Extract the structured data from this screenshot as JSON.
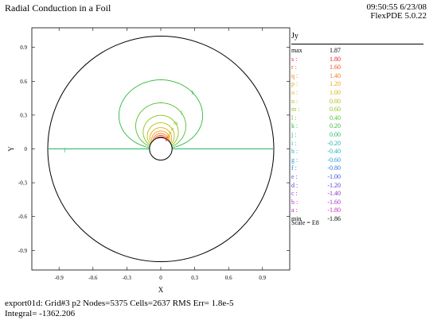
{
  "header": {
    "title": "Radial Conduction in a Foil",
    "timestamp": "09:50:55 6/23/08",
    "version": "FlexPDE 5.0.22"
  },
  "chart_data": {
    "type": "contour",
    "xlabel": "X",
    "ylabel": "Y",
    "xlim": [
      -1.1,
      1.1
    ],
    "ylim": [
      -1.1,
      1.1
    ],
    "xticks": [
      "-0.9",
      "-0.6",
      "-0.3",
      "0",
      "0.3",
      "0.6",
      "0.9"
    ],
    "yticks": [
      "0.9",
      "0.6",
      "0.3",
      "0",
      "-0.3",
      "-0.6",
      "-0.9"
    ],
    "outer_radius": 1.0,
    "inner_radius": 0.1,
    "variable": "Jy",
    "scale": "Scale = E8",
    "legend": [
      {
        "key": "max",
        "value": "1.87",
        "color": "#000000"
      },
      {
        "key": "s :",
        "value": "1.80",
        "color": "#e8192c"
      },
      {
        "key": "r :",
        "value": "1.60",
        "color": "#ee4a1c"
      },
      {
        "key": "q :",
        "value": "1.40",
        "color": "#f07a18"
      },
      {
        "key": "p :",
        "value": "1.20",
        "color": "#ee9e14"
      },
      {
        "key": "o :",
        "value": "1.00",
        "color": "#d8b010"
      },
      {
        "key": "n :",
        "value": "0.80",
        "color": "#b4bf12"
      },
      {
        "key": "m :",
        "value": "0.60",
        "color": "#86c41e"
      },
      {
        "key": "l :",
        "value": "0.40",
        "color": "#56c02c"
      },
      {
        "key": "k :",
        "value": "0.20",
        "color": "#2eb83a"
      },
      {
        "key": "j :",
        "value": "0.00",
        "color": "#1fb66a"
      },
      {
        "key": "i :",
        "value": "-0.20",
        "color": "#18b49c"
      },
      {
        "key": "h :",
        "value": "-0.40",
        "color": "#16b0c4"
      },
      {
        "key": "g :",
        "value": "-0.60",
        "color": "#1a98d2"
      },
      {
        "key": "f :",
        "value": "-0.80",
        "color": "#2474d6"
      },
      {
        "key": "e :",
        "value": "-1.00",
        "color": "#3a4fd8"
      },
      {
        "key": "d :",
        "value": "-1.20",
        "color": "#5a34d4"
      },
      {
        "key": "c :",
        "value": "-1.40",
        "color": "#8430cc"
      },
      {
        "key": "b :",
        "value": "-1.60",
        "color": "#aa2cc4"
      },
      {
        "key": "a :",
        "value": "-1.80",
        "color": "#c428b8"
      },
      {
        "key": "min",
        "value": "-1.86",
        "color": "#000000"
      }
    ],
    "contours": [
      {
        "label": "j",
        "level": 0.0,
        "kind": "axis",
        "color": "#1fb66a"
      },
      {
        "label": "k",
        "level": 0.2,
        "side": "upper",
        "color": "#2eb83a"
      },
      {
        "label": "l",
        "level": 0.4,
        "side": "upper",
        "color": "#56c02c"
      },
      {
        "label": "m",
        "level": 0.6,
        "side": "upper",
        "color": "#86c41e"
      },
      {
        "label": "n",
        "level": 0.8,
        "side": "upper",
        "color": "#b4bf12"
      },
      {
        "label": "o",
        "level": 1.0,
        "side": "upper",
        "color": "#d8b010"
      },
      {
        "label": "p",
        "level": 1.2,
        "side": "upper",
        "color": "#ee9e14"
      },
      {
        "label": "q",
        "level": 1.4,
        "side": "upper",
        "color": "#f07a18"
      },
      {
        "label": "r",
        "level": 1.6,
        "side": "upper",
        "color": "#ee4a1c"
      },
      {
        "label": "s",
        "level": 1.8,
        "side": "upper",
        "color": "#e8192c"
      },
      {
        "label": "i",
        "level": -0.2,
        "side": "lower",
        "color": "#18b49c"
      },
      {
        "label": "h",
        "level": -0.4,
        "side": "lower",
        "color": "#16b0c4"
      },
      {
        "label": "g",
        "level": -0.6,
        "side": "lower",
        "color": "#1a98d2"
      },
      {
        "label": "f",
        "level": -0.8,
        "side": "lower",
        "color": "#2474d6"
      },
      {
        "label": "e",
        "level": -1.0,
        "side": "lower",
        "color": "#3a4fd8"
      },
      {
        "label": "d",
        "level": -1.2,
        "side": "lower",
        "color": "#5a34d4"
      },
      {
        "label": "c",
        "level": -1.4,
        "side": "lower",
        "color": "#8430cc"
      },
      {
        "label": "b",
        "level": -1.6,
        "side": "lower",
        "color": "#aa2cc4"
      },
      {
        "label": "a",
        "level": -1.8,
        "side": "lower",
        "color": "#c428b8"
      }
    ]
  },
  "footer": {
    "line1": "export01d:  Grid#3  p2  Nodes=5375 Cells=2637 RMS Err= 1.8e-5",
    "line2": "Integral= -1362.206"
  }
}
